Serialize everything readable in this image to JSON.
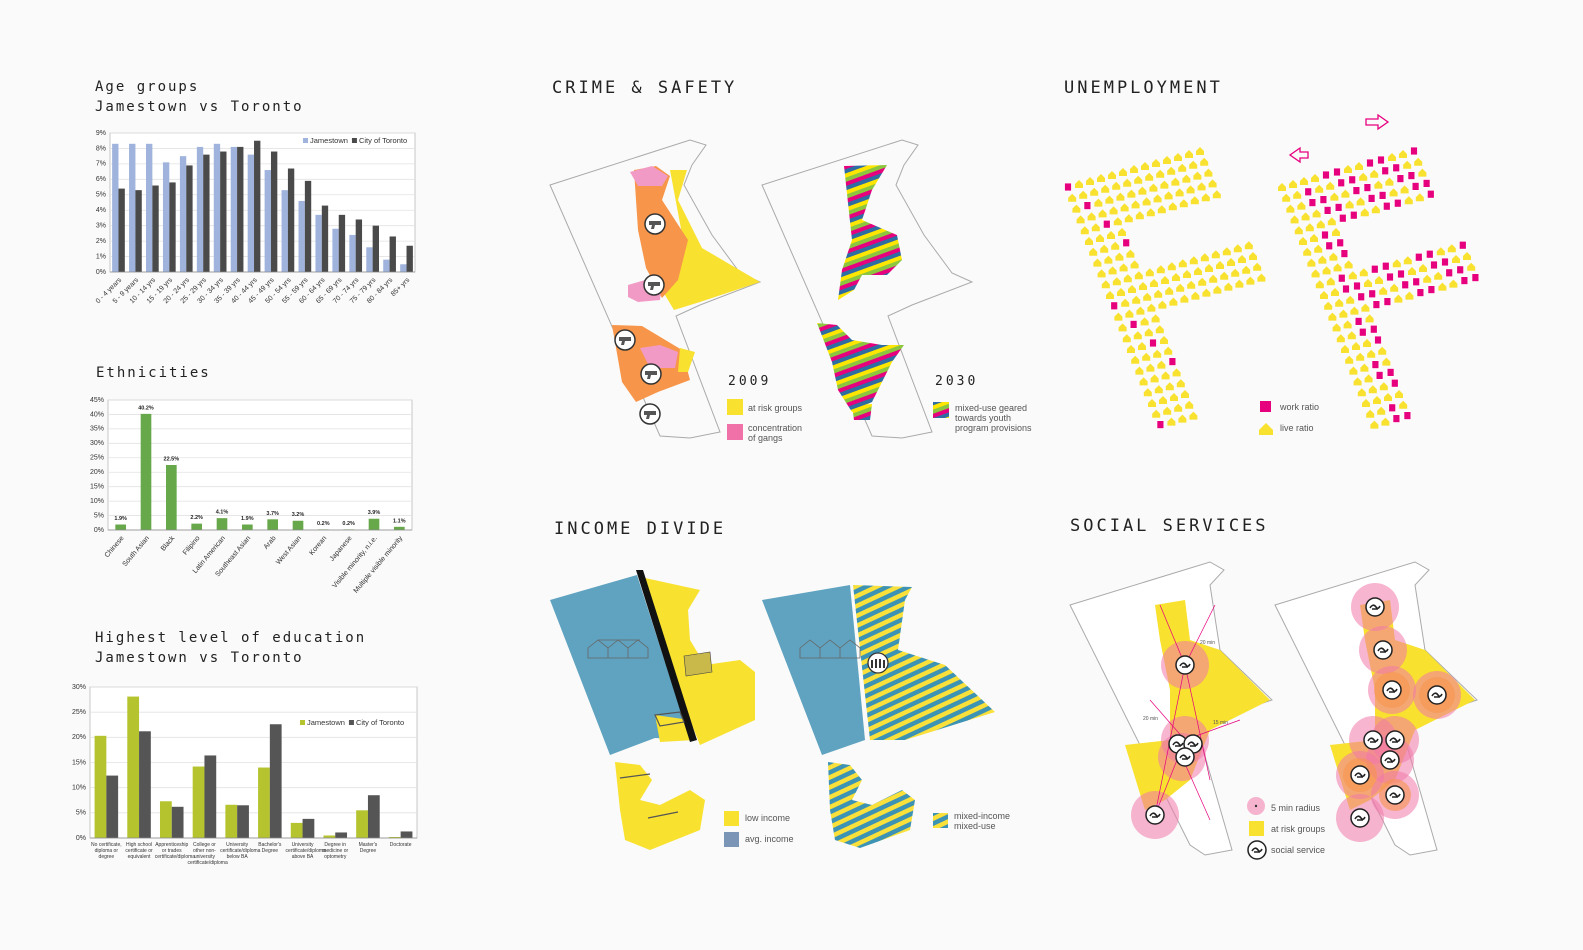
{
  "chart_data": [
    {
      "type": "bar",
      "title": "Age groups",
      "subtitle": "Jamestown vs Toronto",
      "categories": [
        "0 - 4 years",
        "5 - 9 years",
        "10 - 14 yrs",
        "15 - 19 yrs",
        "20 - 24 yrs",
        "25 - 29 yrs",
        "30 - 34 yrs",
        "35 - 39 yrs",
        "40 - 44 yrs",
        "45 - 49 yrs",
        "50 - 54 yrs",
        "55 - 59 yrs",
        "60 - 64 yrs",
        "65 - 69 yrs",
        "70 - 74 yrs",
        "75 - 79 yrs",
        "80 - 84 yrs",
        "85+ yrs"
      ],
      "series": [
        {
          "name": "Jamestown",
          "color": "#9fb3dc",
          "values": [
            8.3,
            8.3,
            8.3,
            7.1,
            7.5,
            8.1,
            8.3,
            8.1,
            7.6,
            6.6,
            5.3,
            4.6,
            3.7,
            2.8,
            2.4,
            1.6,
            0.8,
            0.5
          ]
        },
        {
          "name": "City of Toronto",
          "color": "#4a4a4a",
          "values": [
            5.4,
            5.3,
            5.6,
            5.8,
            6.9,
            7.6,
            7.8,
            8.1,
            8.5,
            7.8,
            6.7,
            5.9,
            4.3,
            3.7,
            3.4,
            3.0,
            2.3,
            1.7
          ]
        }
      ],
      "ylim": [
        0,
        9
      ],
      "yticks": [
        {
          "value": 0,
          "label": "0%"
        },
        {
          "value": 1,
          "label": "1%"
        },
        {
          "value": 2,
          "label": "2%"
        },
        {
          "value": 3,
          "label": "3%"
        },
        {
          "value": 4,
          "label": "4%"
        },
        {
          "value": 5,
          "label": "5%"
        },
        {
          "value": 6,
          "label": "6%"
        },
        {
          "value": 7,
          "label": "7%"
        },
        {
          "value": 8,
          "label": "8%"
        },
        {
          "value": 9,
          "label": "9%"
        }
      ],
      "grid": true,
      "legend": "upper right"
    },
    {
      "type": "bar",
      "title": "Ethnicities",
      "categories": [
        "Chinese",
        "South Asian",
        "Black",
        "Filipino",
        "Latin American",
        "Southeast Asian",
        "Arab",
        "West Asian",
        "Korean",
        "Japanese",
        "Visible minority, n.i.e.",
        "Multiple visible minority"
      ],
      "values": [
        1.9,
        40.2,
        22.5,
        2.2,
        4.1,
        1.9,
        3.7,
        3.2,
        0.2,
        0.2,
        3.9,
        1.1
      ],
      "value_labels": [
        "1.9%",
        "40.2%",
        "22.5%",
        "2.2%",
        "4.1%",
        "1.9%",
        "3.7%",
        "3.2%",
        "0.2%",
        "0.2%",
        "3.9%",
        "1.1%"
      ],
      "color": "#66a84a",
      "ylim": [
        0,
        45
      ],
      "yticks": [
        {
          "value": 0,
          "label": "0%"
        },
        {
          "value": 5,
          "label": "5%"
        },
        {
          "value": 10,
          "label": "10%"
        },
        {
          "value": 15,
          "label": "15%"
        },
        {
          "value": 20,
          "label": "20%"
        },
        {
          "value": 25,
          "label": "25%"
        },
        {
          "value": 30,
          "label": "30%"
        },
        {
          "value": 35,
          "label": "35%"
        },
        {
          "value": 40,
          "label": "40%"
        },
        {
          "value": 45,
          "label": "45%"
        }
      ],
      "grid": true
    },
    {
      "type": "bar",
      "title": "Highest level of education",
      "subtitle": "Jamestown vs Toronto",
      "categories": [
        "No certificate, diploma or degree",
        "High school certificate or equivalent",
        "Apprenticeship or trades certificate/diploma",
        "College or other non-university certificate/diploma",
        "University certificate/diploma below BA",
        "Bachelor's Degree",
        "University certificate/diploma above BA",
        "Degree in medicine or optometry",
        "Master's Degree",
        "Doctorate"
      ],
      "series": [
        {
          "name": "Jamestown",
          "color": "#b5c42e",
          "values": [
            20.3,
            28.1,
            7.3,
            14.2,
            6.6,
            14.0,
            3.0,
            0.5,
            5.5,
            0.2
          ]
        },
        {
          "name": "City of Toronto",
          "color": "#555555",
          "values": [
            12.4,
            21.2,
            6.2,
            16.4,
            6.5,
            22.6,
            3.8,
            1.1,
            8.5,
            1.3
          ]
        }
      ],
      "ylim": [
        0,
        30
      ],
      "yticks": [
        {
          "value": 0,
          "label": "0%"
        },
        {
          "value": 5,
          "label": "5%"
        },
        {
          "value": 10,
          "label": "10%"
        },
        {
          "value": 15,
          "label": "15%"
        },
        {
          "value": 20,
          "label": "20%"
        },
        {
          "value": 25,
          "label": "25%"
        },
        {
          "value": 30,
          "label": "30%"
        }
      ],
      "grid": true,
      "legend": "upper right"
    }
  ],
  "panels": {
    "crime": {
      "title": "CRIME & SAFETY",
      "year_a": "2009",
      "legend_a": [
        "at risk groups",
        "concentration of gangs"
      ],
      "year_b": "2030",
      "legend_b": [
        "mixed-use geared towards youth program provisions"
      ]
    },
    "unemployment": {
      "title": "UNEMPLOYMENT",
      "legend": [
        "work ratio",
        "live ratio"
      ]
    },
    "income": {
      "title": "INCOME DIVIDE",
      "legend_a": [
        "low income",
        "avg. income"
      ],
      "legend_b": [
        "mixed-income mixed-use"
      ]
    },
    "social": {
      "title": "SOCIAL SERVICES",
      "map_labels": [
        "20 min",
        "20 min",
        "15 min"
      ],
      "legend": [
        "5 min radius",
        "at risk groups",
        "social service"
      ]
    }
  }
}
